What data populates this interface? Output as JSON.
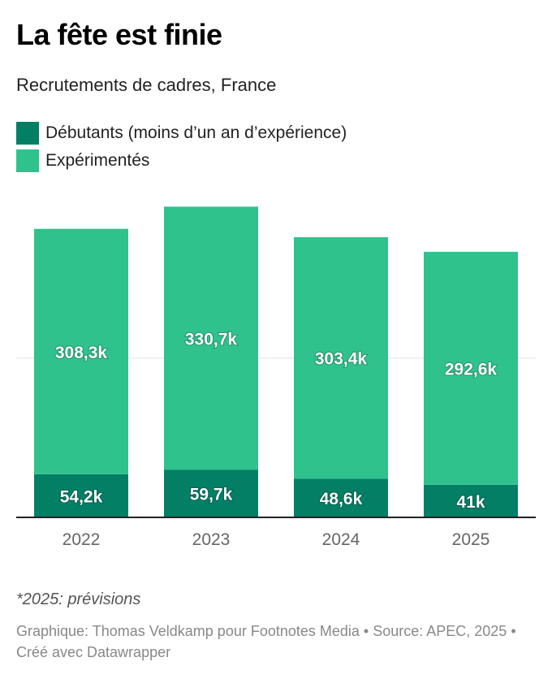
{
  "title": "La fête est finie",
  "subtitle": "Recrutements de cadres, France",
  "legend": [
    {
      "label": "Débutants (moins d’un an d’expérience)",
      "color": "#037f66"
    },
    {
      "label": "Expérimentés",
      "color": "#2fc28d"
    }
  ],
  "chart_data": {
    "type": "bar",
    "stacked": true,
    "categories": [
      "2022",
      "2023",
      "2024",
      "2025"
    ],
    "series": [
      {
        "name": "Débutants (moins d’un an d’expérience)",
        "values": [
          54.2,
          59.7,
          48.6,
          41
        ],
        "labels": [
          "54,2k",
          "59,7k",
          "48,6k",
          "41k"
        ],
        "color": "#037f66"
      },
      {
        "name": "Expérimentés",
        "values": [
          308.3,
          330.7,
          303.4,
          292.6
        ],
        "labels": [
          "308,3k",
          "330,7k",
          "303,4k",
          "292,6k"
        ],
        "color": "#2fc28d"
      }
    ],
    "ylim": [
      0,
      400
    ],
    "gridlines": [
      200
    ],
    "unit": "k"
  },
  "note": "*2025: prévisions",
  "footer": "Graphique: Thomas Veldkamp pour Footnotes Media • Source: APEC, 2025 • Créé avec Datawrapper"
}
